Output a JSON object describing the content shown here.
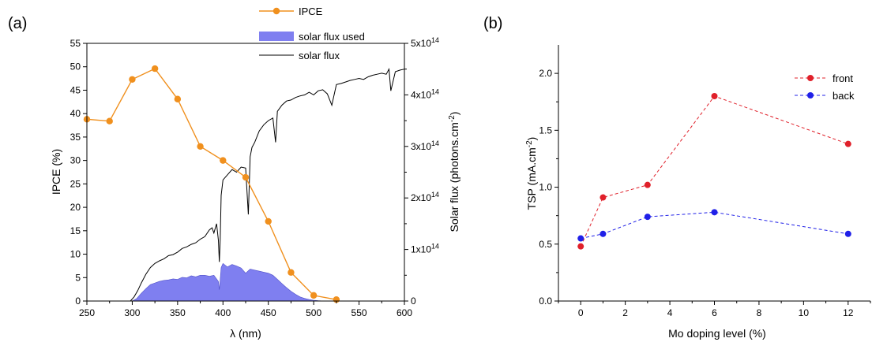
{
  "panels": [
    "(a)",
    "(b)"
  ],
  "exponent_base": "x10",
  "chart_data": [
    {
      "type": "line",
      "xlabel": "λ (nm)",
      "ylabel": "IPCE (%)",
      "y2label": "Solar flux (photons.cm",
      "y2label_sup": "-2",
      "y2label_close": ")",
      "xlim": [
        250,
        600
      ],
      "ylim": [
        0,
        55
      ],
      "y2lim": [
        0,
        500000000000000.0
      ],
      "xticks": [
        250,
        300,
        350,
        400,
        450,
        500,
        550,
        600
      ],
      "yticks": [
        0,
        5,
        10,
        15,
        20,
        25,
        30,
        35,
        40,
        45,
        50,
        55
      ],
      "y2ticks": [
        {
          "value": 0,
          "label": "0",
          "exp": ""
        },
        {
          "value": 100000000000000.0,
          "label": "1",
          "exp": "14"
        },
        {
          "value": 200000000000000.0,
          "label": "2",
          "exp": "14"
        },
        {
          "value": 300000000000000.0,
          "label": "3",
          "exp": "14"
        },
        {
          "value": 400000000000000.0,
          "label": "4",
          "exp": "14"
        },
        {
          "value": 500000000000000.0,
          "label": "5",
          "exp": "14"
        }
      ],
      "legend_position": "top-center",
      "series": [
        {
          "name": "IPCE",
          "kind": "line-marker",
          "axis": "left",
          "color": "#f0901e",
          "x": [
            250,
            275,
            300,
            325,
            350,
            375,
            400,
            425,
            450,
            475,
            500,
            525
          ],
          "y": [
            38.8,
            38.4,
            47.3,
            49.6,
            43.1,
            33.0,
            30.0,
            26.4,
            17.0,
            6.1,
            1.2,
            0.3
          ]
        },
        {
          "name": "solar flux used",
          "kind": "area",
          "axis": "right",
          "color": "#7f7ff0",
          "x": [
            300,
            305,
            310,
            315,
            320,
            325,
            330,
            335,
            340,
            345,
            350,
            355,
            360,
            365,
            370,
            375,
            380,
            385,
            390,
            395,
            396,
            398,
            400,
            405,
            410,
            415,
            420,
            425,
            430,
            435,
            440,
            445,
            450,
            455,
            460,
            465,
            470,
            475,
            480,
            485,
            490,
            495,
            500,
            505,
            510,
            515,
            520,
            525,
            530
          ],
          "y": [
            0,
            5000000000000.0,
            15000000000000.0,
            24000000000000.0,
            32000000000000.0,
            35000000000000.0,
            38000000000000.0,
            40000000000000.0,
            41000000000000.0,
            43000000000000.0,
            42000000000000.0,
            46000000000000.0,
            45000000000000.0,
            49000000000000.0,
            47000000000000.0,
            50000000000000.0,
            50000000000000.0,
            48000000000000.0,
            50000000000000.0,
            38000000000000.0,
            22000000000000.0,
            65000000000000.0,
            73000000000000.0,
            66000000000000.0,
            71000000000000.0,
            68000000000000.0,
            64000000000000.0,
            54000000000000.0,
            62000000000000.0,
            60000000000000.0,
            58000000000000.0,
            56000000000000.0,
            54000000000000.0,
            50000000000000.0,
            42000000000000.0,
            34000000000000.0,
            26000000000000.0,
            19000000000000.0,
            13000000000000.0,
            8000000000000.0,
            5000000000000.0,
            3000000000000.0,
            1500000000000.0,
            600000000000.0,
            200000000000.0,
            100000000000.0,
            0,
            0,
            0
          ]
        },
        {
          "name": "solar flux",
          "kind": "line",
          "axis": "right",
          "color": "#000000",
          "x": [
            250,
            290,
            298,
            302,
            306,
            310,
            315,
            320,
            325,
            330,
            335,
            340,
            345,
            350,
            355,
            360,
            365,
            370,
            375,
            380,
            385,
            388,
            390,
            393,
            395,
            396,
            397,
            398,
            400,
            405,
            410,
            415,
            420,
            425,
            428,
            430,
            432,
            435,
            440,
            445,
            450,
            455,
            458,
            460,
            465,
            470,
            475,
            480,
            485,
            490,
            495,
            500,
            505,
            510,
            515,
            520,
            525,
            530,
            535,
            540,
            545,
            550,
            555,
            560,
            565,
            570,
            575,
            580,
            583,
            585,
            590,
            595,
            600
          ],
          "y": [
            0,
            0,
            0,
            8000000000000.0,
            20000000000000.0,
            35000000000000.0,
            52000000000000.0,
            65000000000000.0,
            73000000000000.0,
            78000000000000.0,
            82000000000000.0,
            88000000000000.0,
            90000000000000.0,
            95000000000000.0,
            102000000000000.0,
            105000000000000.0,
            110000000000000.0,
            113000000000000.0,
            120000000000000.0,
            125000000000000.0,
            138000000000000.0,
            142000000000000.0,
            132000000000000.0,
            150000000000000.0,
            118000000000000.0,
            76000000000000.0,
            120000000000000.0,
            205000000000000.0,
            235000000000000.0,
            245000000000000.0,
            255000000000000.0,
            250000000000000.0,
            260000000000000.0,
            258000000000000.0,
            168000000000000.0,
            280000000000000.0,
            298000000000000.0,
            308000000000000.0,
            330000000000000.0,
            342000000000000.0,
            350000000000000.0,
            355000000000000.0,
            308000000000000.0,
            368000000000000.0,
            380000000000000.0,
            388000000000000.0,
            390000000000000.0,
            395000000000000.0,
            398000000000000.0,
            400000000000000.0,
            405000000000000.0,
            400000000000000.0,
            408000000000000.0,
            410000000000000.0,
            402000000000000.0,
            380000000000000.0,
            420000000000000.0,
            422000000000000.0,
            425000000000000.0,
            428000000000000.0,
            430000000000000.0,
            432000000000000.0,
            430000000000000.0,
            435000000000000.0,
            438000000000000.0,
            440000000000000.0,
            442000000000000.0,
            440000000000000.0,
            450000000000000.0,
            408000000000000.0,
            445000000000000.0,
            448000000000000.0,
            450000000000000.0
          ]
        }
      ]
    },
    {
      "type": "line",
      "xlabel": "Mo doping level (%)",
      "ylabel": "TSP (mA.cm",
      "ylabel_sup": "-2",
      "ylabel_close": ")",
      "xlim": [
        -1,
        13
      ],
      "ylim": [
        0,
        2.25
      ],
      "xticks": [
        0,
        2,
        4,
        6,
        8,
        10,
        12
      ],
      "yticks": [
        "0.0",
        "0.5",
        "1.0",
        "1.5",
        "2.0"
      ],
      "legend_position": "top-right",
      "series": [
        {
          "name": "front",
          "color": "#e0202a",
          "x": [
            0,
            1,
            3,
            6,
            12
          ],
          "y": [
            0.48,
            0.91,
            1.02,
            1.8,
            1.38
          ]
        },
        {
          "name": "back",
          "color": "#2020e8",
          "x": [
            0,
            1,
            3,
            6,
            12
          ],
          "y": [
            0.55,
            0.59,
            0.74,
            0.78,
            0.59
          ]
        }
      ]
    }
  ]
}
